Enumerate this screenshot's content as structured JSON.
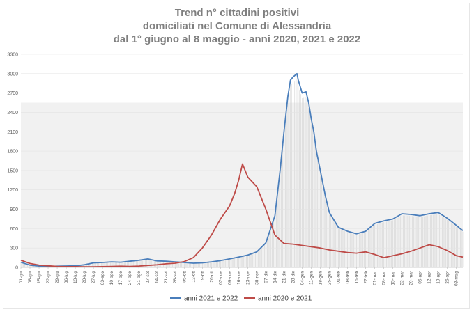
{
  "chart_data": {
    "type": "line",
    "title_lines": [
      "Trend n° cittadini positivi",
      "domiciliati nel Comune di Alessandria",
      "dal 1° giugno al 8 maggio - anni 2020, 2021 e 2022"
    ],
    "xlabel": "",
    "ylabel": "",
    "ylim": [
      0,
      3300
    ],
    "yticks": [
      "0",
      "300",
      "600",
      "900",
      "1200",
      "1500",
      "1800",
      "2100",
      "2400",
      "2700",
      "3000",
      "3300"
    ],
    "x_ticks": [
      "01-giu",
      "08-giu",
      "15-giu",
      "22-giu",
      "29-giu",
      "06-lug",
      "13-lug",
      "20-lug",
      "27-lug",
      "03-ago",
      "10-ago",
      "17-ago",
      "24-ago",
      "31-ago",
      "07-set",
      "14-set",
      "21-set",
      "28-set",
      "05-ott",
      "12-ott",
      "19-ott",
      "26-ott",
      "02-nov",
      "09-nov",
      "16-nov",
      "23-nov",
      "30-nov",
      "07-dic",
      "14-dic",
      "21-dic",
      "28-dic",
      "04-gen",
      "11-gen",
      "18-gen",
      "25-gen",
      "01-feb",
      "08-feb",
      "15-feb",
      "22-feb",
      "01-mar",
      "08-mar",
      "15-mar",
      "22-mar",
      "29-mar",
      "05-apr",
      "12-apr",
      "19-apr",
      "26-apr",
      "03-mag"
    ],
    "grid": true,
    "legend_position": "bottom",
    "series": [
      {
        "name": "anni 2021 e 2022",
        "color": "#4a7ebb",
        "x": [
          0,
          7,
          14,
          21,
          28,
          35,
          42,
          49,
          56,
          63,
          70,
          77,
          84,
          91,
          98,
          105,
          112,
          119,
          126,
          133,
          140,
          147,
          154,
          161,
          168,
          175,
          182,
          189,
          196,
          200,
          203,
          206,
          208,
          210,
          213,
          214,
          217,
          220,
          222,
          224,
          226,
          228,
          231,
          235,
          238,
          241,
          245,
          252,
          259,
          266,
          273,
          280,
          287,
          294,
          301,
          308,
          315,
          322,
          329,
          336,
          339,
          341
        ],
        "values": [
          80,
          35,
          20,
          15,
          18,
          22,
          25,
          40,
          70,
          75,
          85,
          80,
          95,
          110,
          130,
          100,
          95,
          85,
          75,
          65,
          70,
          85,
          105,
          130,
          160,
          190,
          240,
          380,
          800,
          1500,
          2100,
          2650,
          2900,
          2950,
          3000,
          2900,
          2700,
          2720,
          2550,
          2300,
          2100,
          1800,
          1500,
          1100,
          850,
          750,
          620,
          560,
          520,
          560,
          680,
          720,
          750,
          830,
          820,
          800,
          830,
          850,
          760,
          650,
          600,
          570
        ]
      },
      {
        "name": "anni 2020 e 2021",
        "color": "#be4b48",
        "x": [
          0,
          7,
          14,
          21,
          28,
          35,
          42,
          49,
          56,
          63,
          70,
          77,
          84,
          91,
          98,
          105,
          112,
          119,
          126,
          133,
          140,
          147,
          154,
          161,
          165,
          168,
          171,
          175,
          182,
          189,
          196,
          203,
          210,
          217,
          224,
          231,
          238,
          245,
          252,
          259,
          266,
          273,
          280,
          287,
          294,
          301,
          308,
          315,
          322,
          329,
          336,
          341
        ],
        "values": [
          110,
          60,
          35,
          25,
          15,
          12,
          12,
          10,
          10,
          12,
          15,
          18,
          15,
          20,
          30,
          40,
          55,
          65,
          90,
          150,
          300,
          500,
          750,
          950,
          1150,
          1350,
          1600,
          1400,
          1250,
          900,
          500,
          370,
          360,
          340,
          320,
          300,
          270,
          250,
          230,
          220,
          240,
          200,
          150,
          180,
          210,
          250,
          300,
          350,
          320,
          260,
          180,
          160
        ]
      }
    ]
  }
}
